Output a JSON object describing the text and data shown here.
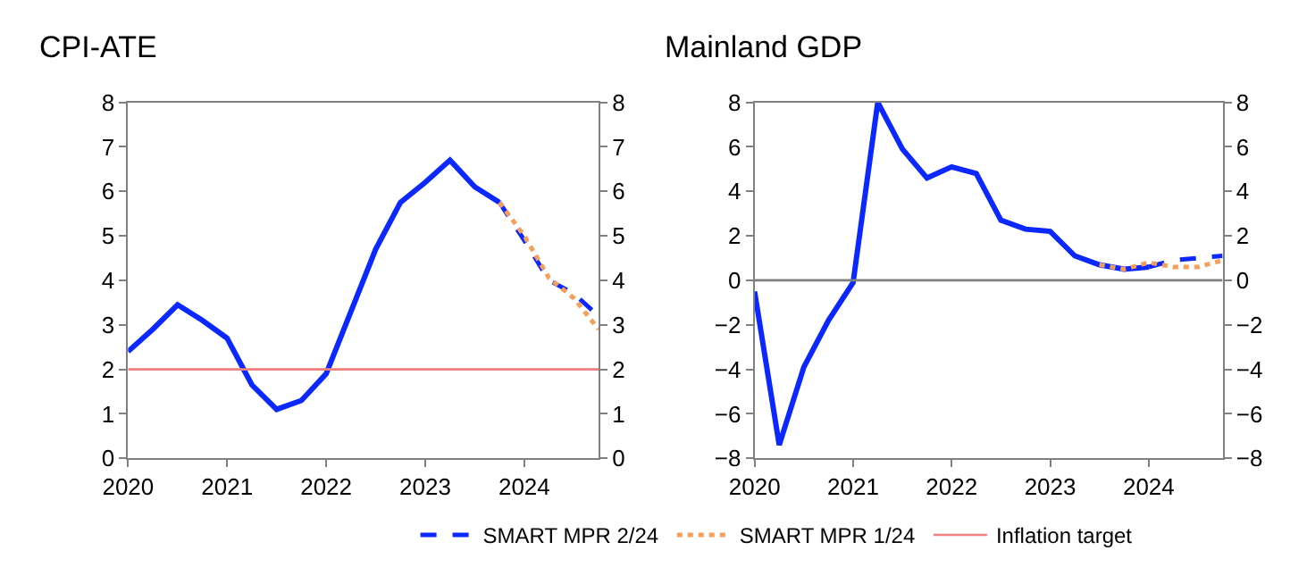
{
  "chart_data": [
    {
      "type": "line",
      "title": "CPI-ATE",
      "series": [
        {
          "color": "#0a28ff",
          "line_style": "solid",
          "x": [
            2020,
            2020.25,
            2020.5,
            2020.75,
            2021,
            2021.25,
            2021.5,
            2021.75,
            2022,
            2022.25,
            2022.5,
            2022.75,
            2023,
            2023.25,
            2023.5,
            2023.75
          ],
          "values": [
            2.4,
            2.9,
            3.45,
            3.1,
            2.7,
            1.65,
            1.1,
            1.3,
            1.9,
            3.3,
            4.7,
            5.75,
            6.2,
            6.7,
            6.1,
            5.75
          ]
        },
        {
          "name": "SMART MPR 2/24",
          "color": "#0a28ff",
          "line_style": "dashed",
          "x": [
            2023.75,
            2024,
            2024.25,
            2024.5,
            2024.75
          ],
          "values": [
            5.75,
            4.9,
            4.0,
            3.7,
            3.2
          ]
        },
        {
          "name": "SMART MPR 1/24",
          "color": "#f5a05a",
          "line_style": "dotted",
          "x": [
            2023.75,
            2024,
            2024.25,
            2024.5,
            2024.75
          ],
          "values": [
            5.75,
            5.0,
            4.05,
            3.6,
            2.9
          ]
        }
      ],
      "ref_lines": [
        {
          "axis": "y2",
          "value": 2,
          "label": "Inflation target",
          "color": "#f08080"
        }
      ],
      "xlim": [
        2020,
        2024.75
      ],
      "xticks": [
        2020,
        2021,
        2022,
        2023,
        2024
      ],
      "ylim": [
        0,
        8
      ],
      "yticks": [
        0,
        1,
        2,
        3,
        4,
        5,
        6,
        7,
        8
      ],
      "y2lim": [
        0,
        8
      ],
      "y2ticks": [
        0,
        1,
        2,
        3,
        4,
        5,
        6,
        7,
        8
      ],
      "legend": "bottom"
    },
    {
      "type": "line",
      "title": "Mainland GDP",
      "series": [
        {
          "color": "#0a28ff",
          "line_style": "solid",
          "x": [
            2020,
            2020.25,
            2020.5,
            2020.75,
            2021,
            2021.25,
            2021.5,
            2021.75,
            2022,
            2022.25,
            2022.5,
            2022.75,
            2023,
            2023.25,
            2023.5,
            2023.75,
            2024
          ],
          "values": [
            -0.5,
            -7.4,
            -3.9,
            -1.8,
            -0.1,
            8.0,
            5.9,
            4.6,
            5.1,
            4.8,
            2.7,
            2.3,
            2.2,
            1.1,
            0.7,
            0.5,
            0.6
          ]
        },
        {
          "name": "SMART MPR 2/24",
          "color": "#0a28ff",
          "line_style": "dashed",
          "x": [
            2024,
            2024.25,
            2024.5,
            2024.75
          ],
          "values": [
            0.6,
            0.9,
            1.0,
            1.1
          ]
        },
        {
          "name": "SMART MPR 1/24",
          "color": "#f5a05a",
          "line_style": "dotted",
          "x": [
            2023.5,
            2023.75,
            2024,
            2024.25,
            2024.5,
            2024.75
          ],
          "values": [
            0.7,
            0.5,
            0.8,
            0.6,
            0.6,
            0.9
          ]
        }
      ],
      "ref_lines": [
        {
          "axis": "y2",
          "value": 0,
          "color": "#808080"
        }
      ],
      "xlim": [
        2020,
        2024.75
      ],
      "xticks": [
        2020,
        2021,
        2022,
        2023,
        2024
      ],
      "ylim": [
        -8,
        8
      ],
      "yticks": [
        {
          "value": -8,
          "label": "−8"
        },
        {
          "value": -6,
          "label": "−6"
        },
        {
          "value": -4,
          "label": "−4"
        },
        {
          "value": -2,
          "label": "−2"
        },
        0,
        2,
        4,
        6,
        8
      ],
      "y2lim": [
        -8,
        8
      ],
      "y2ticks": [
        {
          "value": -8,
          "label": "−8"
        },
        {
          "value": -6,
          "label": "−6"
        },
        {
          "value": -4,
          "label": "−4"
        },
        {
          "value": -2,
          "label": "−2"
        },
        0,
        2,
        4,
        6,
        8
      ],
      "legend": "bottom"
    }
  ]
}
